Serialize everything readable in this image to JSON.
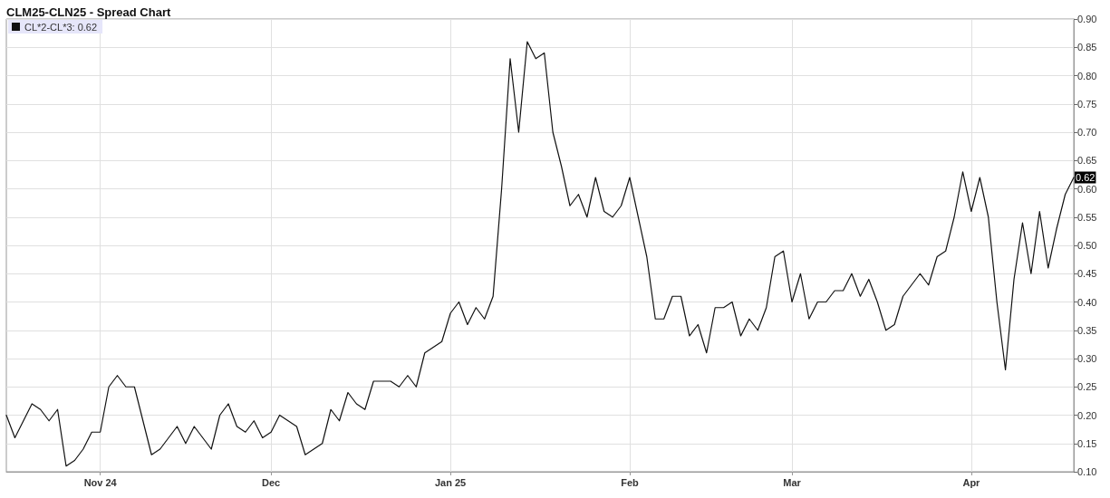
{
  "chart_data": {
    "type": "line",
    "title": "CLM25-CLN25 - Spread Chart",
    "categories": [
      null,
      null,
      null,
      null,
      null,
      null,
      null,
      null,
      null,
      null,
      null,
      "Nov 24",
      null,
      null,
      null,
      null,
      null,
      null,
      null,
      null,
      null,
      null,
      null,
      null,
      null,
      null,
      null,
      null,
      null,
      null,
      null,
      "Dec",
      null,
      null,
      null,
      null,
      null,
      null,
      null,
      null,
      null,
      null,
      null,
      null,
      null,
      null,
      null,
      null,
      null,
      null,
      null,
      null,
      "Jan 25",
      null,
      null,
      null,
      null,
      null,
      null,
      null,
      null,
      null,
      null,
      null,
      null,
      null,
      null,
      null,
      null,
      null,
      null,
      null,
      null,
      "Feb",
      null,
      null,
      null,
      null,
      null,
      null,
      null,
      null,
      null,
      null,
      null,
      null,
      null,
      null,
      null,
      null,
      null,
      null,
      "Mar",
      null,
      null,
      null,
      null,
      null,
      null,
      null,
      null,
      null,
      null,
      null,
      null,
      null,
      null,
      null,
      null,
      null,
      null,
      null,
      null,
      "Apr",
      null,
      null,
      null,
      null,
      null,
      null,
      null,
      null,
      null,
      null,
      null,
      null
    ],
    "series": [
      {
        "name": "CL*2-CL*3: 0.62",
        "color": "#111111",
        "values": [
          0.2,
          0.16,
          0.19,
          0.22,
          0.21,
          0.19,
          0.21,
          0.11,
          0.12,
          0.14,
          0.17,
          0.17,
          0.25,
          0.27,
          0.25,
          0.25,
          0.19,
          0.13,
          0.14,
          0.16,
          0.18,
          0.15,
          0.18,
          0.16,
          0.14,
          0.2,
          0.22,
          0.18,
          0.17,
          0.19,
          0.16,
          0.17,
          0.2,
          0.19,
          0.18,
          0.13,
          0.14,
          0.15,
          0.21,
          0.19,
          0.24,
          0.22,
          0.21,
          0.26,
          0.26,
          0.26,
          0.25,
          0.27,
          0.25,
          0.31,
          0.32,
          0.33,
          0.38,
          0.4,
          0.36,
          0.39,
          0.37,
          0.41,
          0.6,
          0.83,
          0.7,
          0.86,
          0.83,
          0.84,
          0.7,
          0.64,
          0.57,
          0.59,
          0.55,
          0.62,
          0.56,
          0.55,
          0.57,
          0.62,
          0.55,
          0.48,
          0.37,
          0.37,
          0.41,
          0.41,
          0.34,
          0.36,
          0.31,
          0.39,
          0.39,
          0.4,
          0.34,
          0.37,
          0.35,
          0.39,
          0.48,
          0.49,
          0.4,
          0.45,
          0.37,
          0.4,
          0.4,
          0.42,
          0.42,
          0.45,
          0.41,
          0.44,
          0.4,
          0.35,
          0.36,
          0.41,
          0.43,
          0.45,
          0.43,
          0.48,
          0.49,
          0.55,
          0.63,
          0.56,
          0.62,
          0.55,
          0.4,
          0.28,
          0.44,
          0.54,
          0.45,
          0.56,
          0.46,
          0.53,
          0.59,
          0.62
        ]
      }
    ],
    "ylim": [
      0.1,
      0.9
    ],
    "yticks": [
      {
        "value": 0.1,
        "label": "0.10"
      },
      {
        "value": 0.15,
        "label": "0.15"
      },
      {
        "value": 0.2,
        "label": "0.20"
      },
      {
        "value": 0.25,
        "label": "0.25"
      },
      {
        "value": 0.3,
        "label": "0.30"
      },
      {
        "value": 0.35,
        "label": "0.35"
      },
      {
        "value": 0.4,
        "label": "0.40"
      },
      {
        "value": 0.45,
        "label": "0.45"
      },
      {
        "value": 0.5,
        "label": "0.50"
      },
      {
        "value": 0.55,
        "label": "0.55"
      },
      {
        "value": 0.6,
        "label": "0.60"
      },
      {
        "value": 0.65,
        "label": "0.65"
      },
      {
        "value": 0.7,
        "label": "0.70"
      },
      {
        "value": 0.75,
        "label": "0.75"
      },
      {
        "value": 0.8,
        "label": "0.80"
      },
      {
        "value": 0.85,
        "label": "0.85"
      },
      {
        "value": 0.9,
        "label": "0.90"
      }
    ],
    "annotations": [
      {
        "text": "0.62",
        "y": 0.62
      }
    ],
    "grid": true,
    "legend": "top left"
  }
}
